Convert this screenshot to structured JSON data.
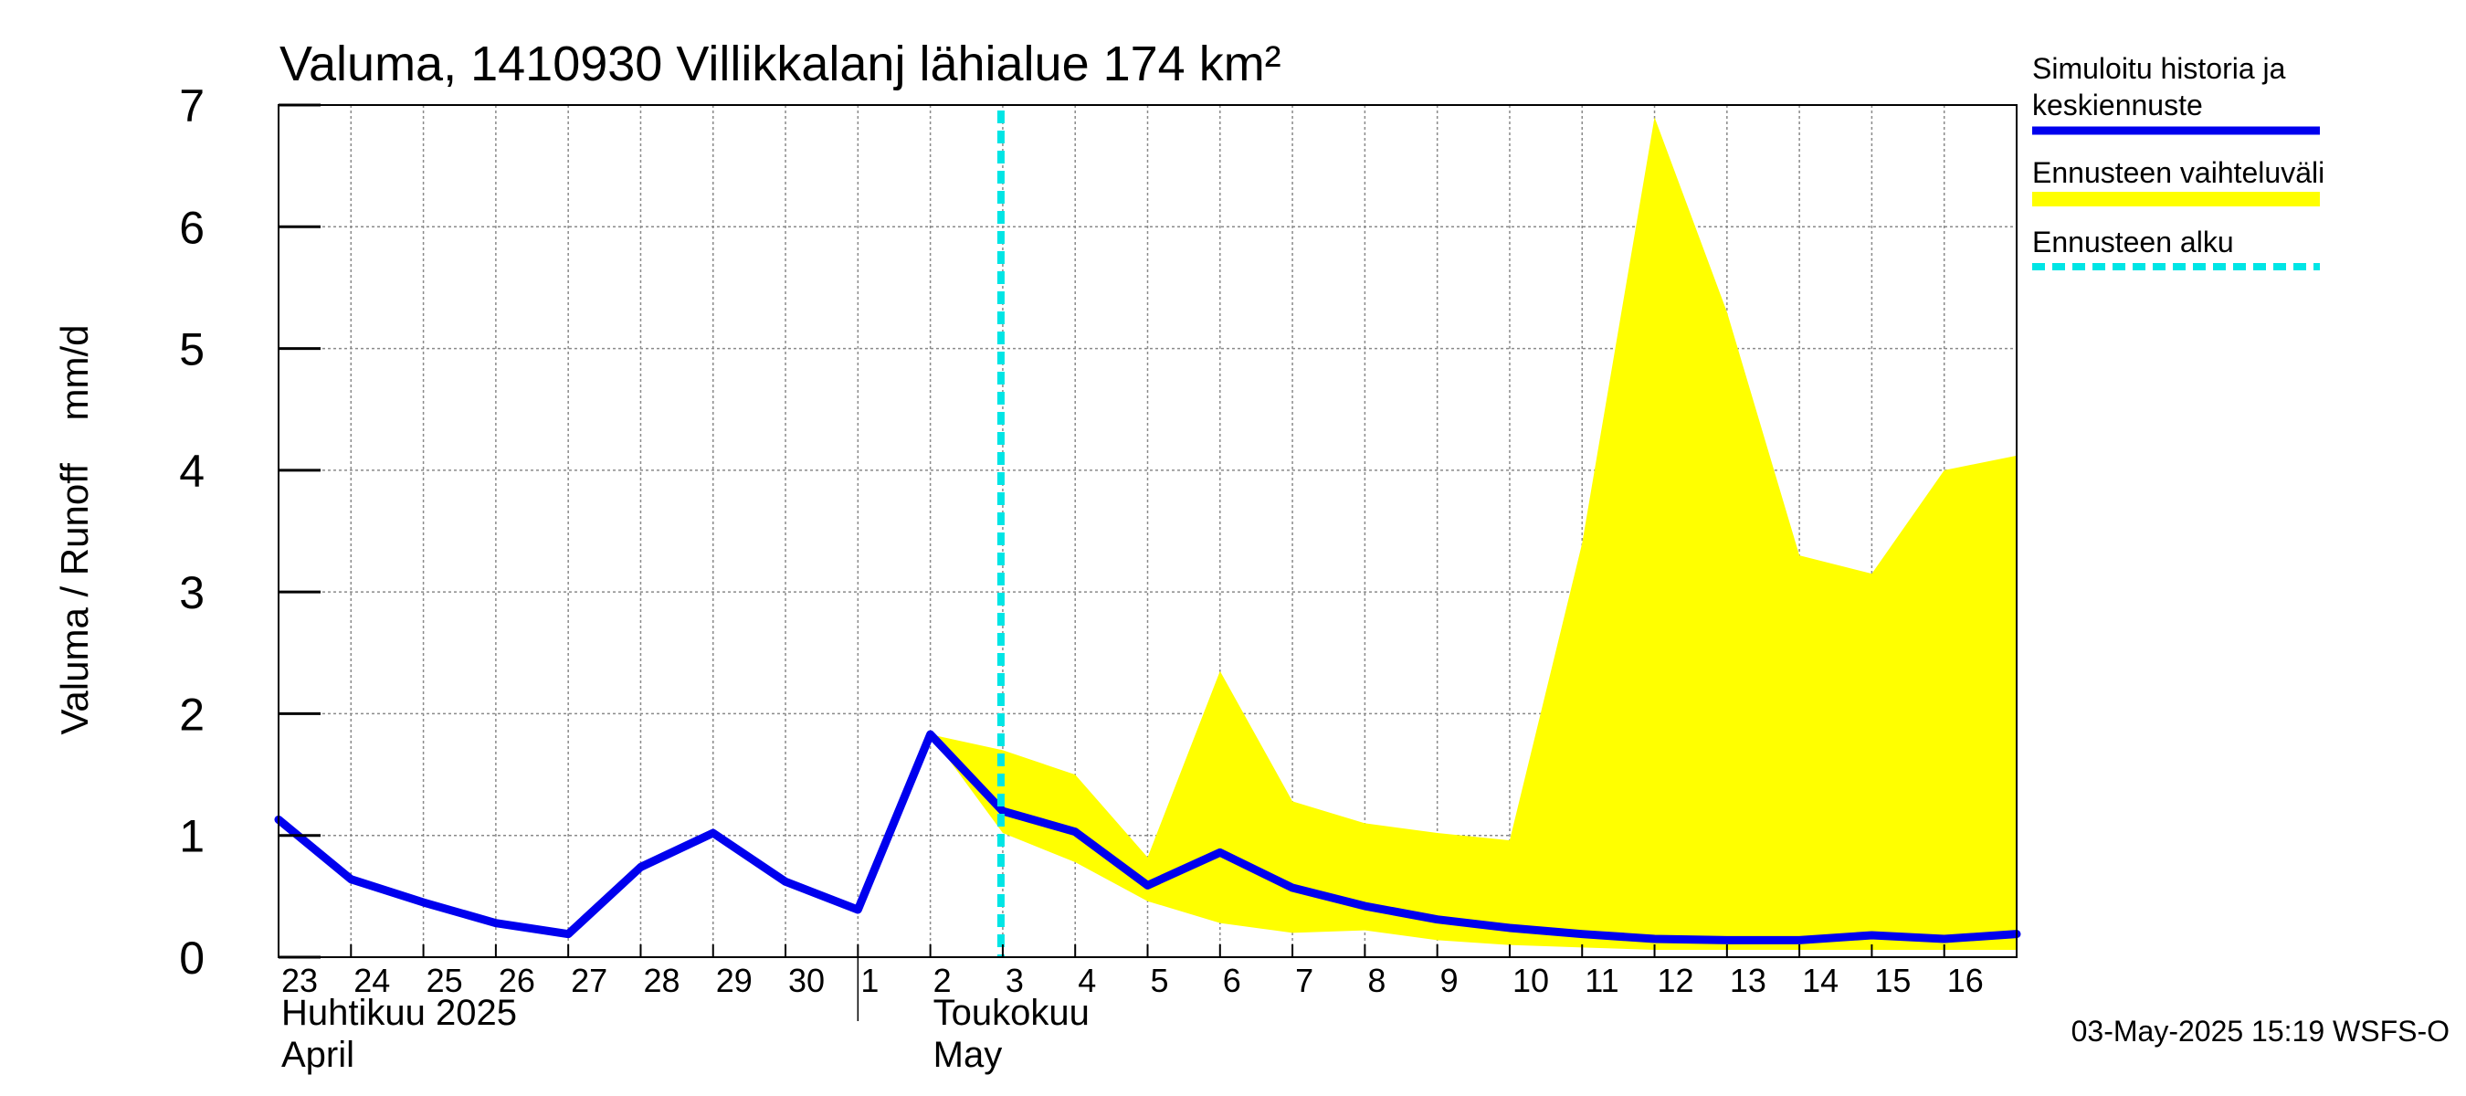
{
  "chart_data": {
    "type": "line",
    "title": "Valuma, 1410930 Villikkalanj lähialue 174 km²",
    "ylabel": "Valuma / Runoff    mm/d",
    "ylim": [
      0,
      7
    ],
    "yticks": [
      "0",
      "1",
      "2",
      "3",
      "4",
      "5",
      "6",
      "7"
    ],
    "x_day_index_range": [
      0,
      24
    ],
    "x_ticks": [
      {
        "label": "23",
        "day_index": 0
      },
      {
        "label": "24",
        "day_index": 1
      },
      {
        "label": "25",
        "day_index": 2
      },
      {
        "label": "26",
        "day_index": 3
      },
      {
        "label": "27",
        "day_index": 4
      },
      {
        "label": "28",
        "day_index": 5
      },
      {
        "label": "29",
        "day_index": 6
      },
      {
        "label": "30",
        "day_index": 7
      },
      {
        "label": "1",
        "day_index": 8
      },
      {
        "label": "2",
        "day_index": 9
      },
      {
        "label": "3",
        "day_index": 10
      },
      {
        "label": "4",
        "day_index": 11
      },
      {
        "label": "5",
        "day_index": 12
      },
      {
        "label": "6",
        "day_index": 13
      },
      {
        "label": "7",
        "day_index": 14
      },
      {
        "label": "8",
        "day_index": 15
      },
      {
        "label": "9",
        "day_index": 16
      },
      {
        "label": "10",
        "day_index": 17
      },
      {
        "label": "11",
        "day_index": 18
      },
      {
        "label": "12",
        "day_index": 19
      },
      {
        "label": "13",
        "day_index": 20
      },
      {
        "label": "14",
        "day_index": 21
      },
      {
        "label": "15",
        "day_index": 22
      },
      {
        "label": "16",
        "day_index": 23
      }
    ],
    "month_labels": [
      {
        "line1": "Huhtikuu  2025",
        "line2": "April",
        "start_day_index": 0
      },
      {
        "line1": "Toukokuu",
        "line2": "May",
        "start_day_index": 9
      }
    ],
    "month_separator_day_index": 8,
    "forecast_start_day_index": 10,
    "series": [
      {
        "name": "Simuloitu historia ja keskiennuste",
        "color": "#0000ee",
        "x": [
          0,
          1,
          2,
          3,
          4,
          5,
          6,
          7,
          8,
          9,
          10,
          11,
          12,
          13,
          14,
          15,
          16,
          17,
          18,
          19,
          20,
          21,
          22,
          23,
          24
        ],
        "values": [
          1.13,
          0.64,
          0.45,
          0.28,
          0.19,
          0.74,
          1.02,
          0.62,
          0.39,
          1.83,
          1.2,
          1.03,
          0.59,
          0.86,
          0.57,
          0.42,
          0.31,
          0.24,
          0.19,
          0.15,
          0.14,
          0.14,
          0.18,
          0.15,
          0.19
        ]
      },
      {
        "name": "Ennusteen vaihteluväli",
        "color": "#ffff00",
        "x": [
          9,
          10,
          11,
          12,
          13,
          14,
          15,
          16,
          17,
          18,
          19,
          20,
          21,
          22,
          23,
          24
        ],
        "upper": [
          1.83,
          1.7,
          1.5,
          0.82,
          2.35,
          1.28,
          1.1,
          1.02,
          0.96,
          3.4,
          6.9,
          5.3,
          3.3,
          3.15,
          4.0,
          4.12
        ],
        "lower": [
          1.83,
          1.02,
          0.78,
          0.46,
          0.28,
          0.2,
          0.22,
          0.14,
          0.1,
          0.08,
          0.06,
          0.06,
          0.06,
          0.06,
          0.06,
          0.06
        ]
      }
    ],
    "legend": {
      "position": "right",
      "entries": [
        {
          "label_line1": "Simuloitu historia ja",
          "label_line2": "keskiennuste",
          "color": "#0000ee",
          "style": "solid"
        },
        {
          "label_line1": "Ennusteen vaihteluväli",
          "label_line2": "",
          "color": "#ffff00",
          "style": "thick"
        },
        {
          "label_line1": "Ennusteen alku",
          "label_line2": "",
          "color": "#00e5e5",
          "style": "dashed"
        }
      ]
    },
    "footer": "03-May-2025 15:19 WSFS-O"
  }
}
